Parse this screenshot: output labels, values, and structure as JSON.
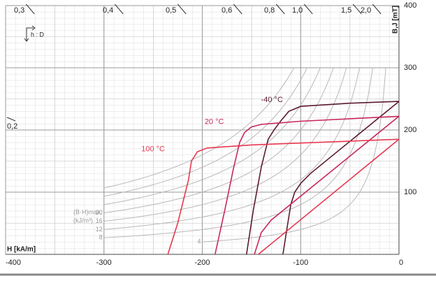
{
  "chart_data": {
    "type": "line",
    "x_label": "H [kA/m]",
    "y_label": "B,J [mT]",
    "xlim": [
      -400,
      0
    ],
    "ylim": [
      0,
      400
    ],
    "xticks": [
      -400,
      -300,
      -200,
      -100,
      0
    ],
    "yticks": [
      100,
      200,
      300,
      400
    ],
    "grid": true,
    "icon_label": "h : D",
    "temperatures": [
      {
        "name": "-40 °C",
        "color": "#5c1b2e",
        "J": {
          "x": [
            0,
            -50,
            -100,
            -112,
            -120,
            -127,
            -133,
            -140,
            -148,
            -155
          ],
          "values": [
            246,
            243,
            238,
            230,
            215,
            200,
            185,
            140,
            72,
            0
          ]
        },
        "B": {
          "x": [
            0,
            -90,
            -100,
            -106,
            -110,
            -114,
            -118
          ],
          "values": [
            246,
            130,
            114,
            100,
            80,
            40,
            0
          ]
        }
      },
      {
        "name": "20 °C",
        "color": "#c8285a",
        "J": {
          "x": [
            0,
            -100,
            -140,
            -150,
            -157,
            -162,
            -168,
            -177,
            -187
          ],
          "values": [
            222,
            214,
            209,
            205,
            196,
            180,
            140,
            72,
            0
          ]
        },
        "B": {
          "x": [
            0,
            -130,
            -140,
            -147
          ],
          "values": [
            222,
            55,
            35,
            0
          ]
        }
      },
      {
        "name": "100 °C",
        "color": "#e8384f",
        "J": {
          "x": [
            0,
            -150,
            -195,
            -205,
            -211,
            -214,
            -225,
            -235
          ],
          "values": [
            185,
            176,
            171,
            165,
            150,
            120,
            50,
            0
          ]
        },
        "B": {
          "x": [
            0,
            -143
          ],
          "values": [
            185,
            0
          ]
        }
      }
    ],
    "bh_levels": [
      4,
      8,
      12,
      16,
      20,
      24,
      28,
      32
    ],
    "bh_level_labels": [
      "4",
      "8",
      "12",
      "16",
      "20",
      null,
      null,
      null
    ],
    "bh_label_line1": "(B·H)max,",
    "bh_label_line2": "(kJ/m³)",
    "permeance_labels": [
      "0,2",
      "0,3",
      "0,4",
      "0,5",
      "0,6",
      "0,8",
      "1,0",
      "1,5",
      "2,0"
    ]
  }
}
